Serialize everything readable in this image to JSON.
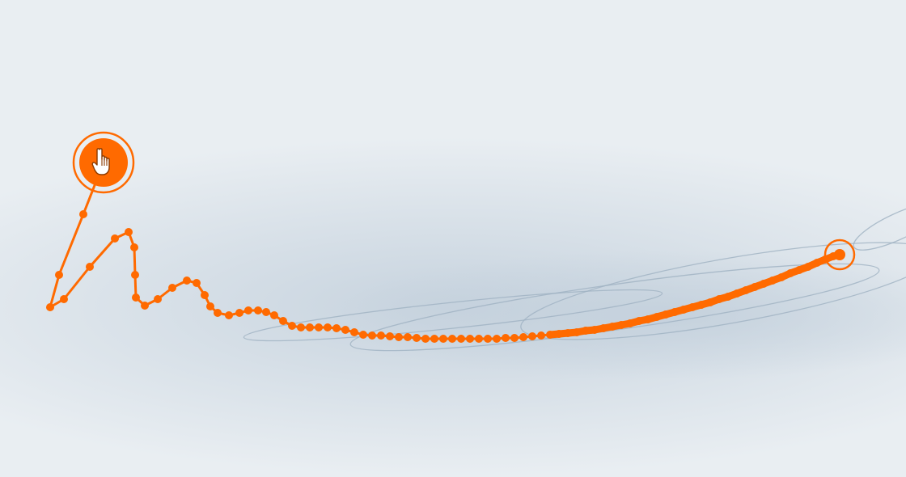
{
  "colors": {
    "background": "#e9eef2",
    "valley": "#c3d0dc",
    "contour": "#9fb1c2",
    "path": "#ff6a00",
    "cursor_fill": "#ffffff"
  },
  "icons": {
    "start_handle": "hand-pointer-icon",
    "end_handle": "ring-icon"
  },
  "trajectory": [
    [
      128,
      201
    ],
    [
      103,
      265
    ],
    [
      73,
      340
    ],
    [
      62,
      380
    ],
    [
      79,
      370
    ],
    [
      111,
      330
    ],
    [
      142,
      295
    ],
    [
      159,
      287
    ],
    [
      166,
      306
    ],
    [
      167,
      340
    ],
    [
      168,
      368
    ],
    [
      179,
      378
    ],
    [
      195,
      370
    ],
    [
      213,
      356
    ],
    [
      231,
      347
    ],
    [
      243,
      350
    ],
    [
      253,
      365
    ],
    [
      260,
      379
    ],
    [
      269,
      387
    ],
    [
      283,
      390
    ],
    [
      296,
      387
    ],
    [
      307,
      384
    ],
    [
      319,
      384
    ],
    [
      329,
      386
    ],
    [
      339,
      390
    ],
    [
      350,
      397
    ],
    [
      361,
      403
    ],
    [
      372,
      405
    ],
    [
      383,
      405
    ],
    [
      394,
      405
    ],
    [
      405,
      405
    ],
    [
      416,
      406
    ],
    [
      427,
      408
    ],
    [
      438,
      411
    ],
    [
      449,
      414
    ],
    [
      460,
      415
    ],
    [
      471,
      415
    ],
    [
      482,
      416
    ],
    [
      493,
      417
    ],
    [
      504,
      417
    ],
    [
      515,
      418
    ],
    [
      526,
      419
    ],
    [
      537,
      419
    ],
    [
      548,
      419
    ],
    [
      559,
      419
    ],
    [
      570,
      419
    ],
    [
      581,
      419
    ],
    [
      592,
      419
    ],
    [
      603,
      419
    ],
    [
      614,
      419
    ],
    [
      625,
      418
    ],
    [
      636,
      418
    ],
    [
      647,
      417
    ],
    [
      658,
      416
    ],
    [
      669,
      415
    ],
    [
      680,
      414
    ],
    [
      691,
      413
    ],
    [
      702,
      412
    ],
    [
      713,
      411
    ],
    [
      724,
      409
    ],
    [
      735,
      408
    ],
    [
      746,
      406
    ],
    [
      757,
      404
    ],
    [
      768,
      402
    ],
    [
      779,
      400
    ],
    [
      790,
      397
    ],
    [
      801,
      395
    ],
    [
      812,
      392
    ],
    [
      823,
      389
    ],
    [
      834,
      386
    ],
    [
      845,
      383
    ],
    [
      856,
      380
    ],
    [
      867,
      377
    ],
    [
      878,
      374
    ],
    [
      889,
      370
    ],
    [
      900,
      367
    ],
    [
      911,
      363
    ],
    [
      922,
      359
    ],
    [
      933,
      355
    ],
    [
      944,
      351
    ],
    [
      955,
      347
    ],
    [
      966,
      343
    ],
    [
      977,
      338
    ],
    [
      988,
      334
    ],
    [
      999,
      330
    ],
    [
      1010,
      325
    ],
    [
      1020,
      321
    ],
    [
      1030,
      317
    ],
    [
      1038,
      315
    ]
  ]
}
